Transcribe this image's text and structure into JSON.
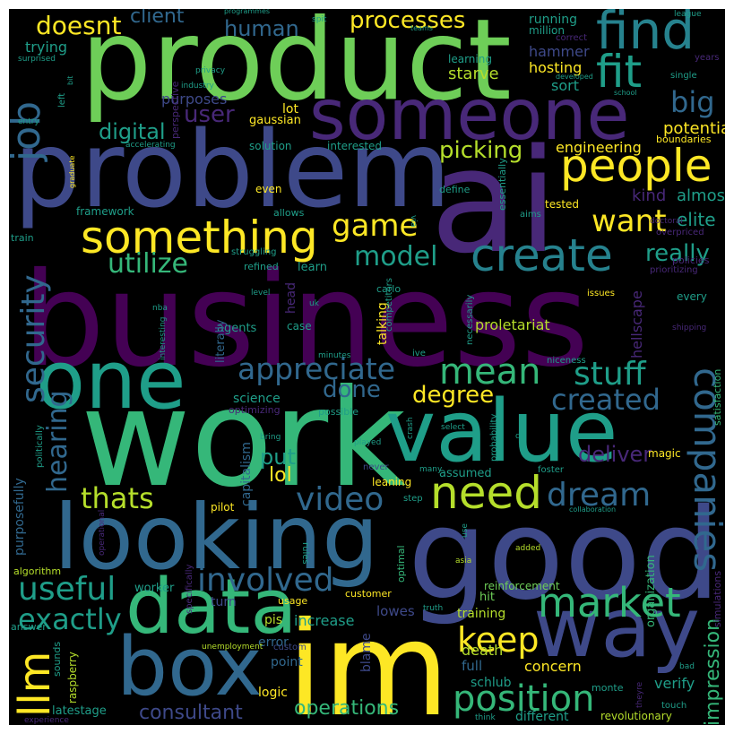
{
  "palette": {
    "yellow": "#fde725",
    "lime": "#b5de2b",
    "lightgreen": "#6ece58",
    "green": "#35b779",
    "teal": "#1f9e89",
    "cyan": "#26828e",
    "steel": "#31688e",
    "blue": "#3e4989",
    "indigo": "#482878",
    "purple": "#440154"
  },
  "words": [
    {
      "text": "business",
      "color": "purple"
    },
    {
      "text": "product",
      "color": "lightgreen"
    },
    {
      "text": "problem",
      "color": "blue"
    },
    {
      "text": "ai",
      "color": "indigo"
    },
    {
      "text": "work",
      "color": "green"
    },
    {
      "text": "value",
      "color": "teal"
    },
    {
      "text": "good",
      "color": "blue"
    },
    {
      "text": "im",
      "color": "yellow"
    },
    {
      "text": "looking",
      "color": "steel"
    },
    {
      "text": "one",
      "color": "teal"
    },
    {
      "text": "someone",
      "color": "indigo"
    },
    {
      "text": "data",
      "color": "green"
    },
    {
      "text": "box",
      "color": "steel"
    },
    {
      "text": "way",
      "color": "blue"
    },
    {
      "text": "find",
      "color": "cyan"
    },
    {
      "text": "fit",
      "color": "teal"
    },
    {
      "text": "people",
      "color": "yellow"
    },
    {
      "text": "something",
      "color": "yellow"
    },
    {
      "text": "create",
      "color": "cyan"
    },
    {
      "text": "need",
      "color": "lime"
    },
    {
      "text": "companies",
      "color": "steel"
    },
    {
      "text": "market",
      "color": "green"
    },
    {
      "text": "position",
      "color": "green"
    },
    {
      "text": "mean",
      "color": "green"
    },
    {
      "text": "llm",
      "color": "yellow"
    },
    {
      "text": "job",
      "color": "steel"
    },
    {
      "text": "security",
      "color": "steel"
    },
    {
      "text": "keep",
      "color": "yellow"
    },
    {
      "text": "video",
      "color": "steel"
    },
    {
      "text": "dream",
      "color": "steel"
    },
    {
      "text": "useful",
      "color": "teal"
    },
    {
      "text": "involved",
      "color": "steel"
    },
    {
      "text": "appreciate",
      "color": "steel"
    },
    {
      "text": "utilize",
      "color": "green"
    },
    {
      "text": "stuff",
      "color": "teal"
    },
    {
      "text": "game",
      "color": "yellow"
    },
    {
      "text": "created",
      "color": "steel"
    },
    {
      "text": "thats",
      "color": "lime"
    },
    {
      "text": "exactly",
      "color": "teal"
    },
    {
      "text": "want",
      "color": "yellow"
    },
    {
      "text": "hearing",
      "color": "steel"
    },
    {
      "text": "model",
      "color": "teal"
    },
    {
      "text": "big",
      "color": "steel"
    },
    {
      "text": "doesnt",
      "color": "yellow"
    },
    {
      "text": "processes",
      "color": "yellow"
    },
    {
      "text": "human",
      "color": "steel"
    },
    {
      "text": "client",
      "color": "steel"
    },
    {
      "text": "user",
      "color": "indigo"
    },
    {
      "text": "digital",
      "color": "teal"
    },
    {
      "text": "picking",
      "color": "lime"
    },
    {
      "text": "done",
      "color": "steel"
    },
    {
      "text": "degree",
      "color": "yellow"
    },
    {
      "text": "really",
      "color": "teal"
    },
    {
      "text": "impression",
      "color": "green"
    },
    {
      "text": "operations",
      "color": "green"
    },
    {
      "text": "consultant",
      "color": "blue"
    },
    {
      "text": "deliver",
      "color": "indigo"
    },
    {
      "text": "put",
      "color": "teal"
    },
    {
      "text": "lol",
      "color": "yellow"
    },
    {
      "text": "elite",
      "color": "teal"
    },
    {
      "text": "kind",
      "color": "indigo"
    },
    {
      "text": "almost",
      "color": "teal"
    },
    {
      "text": "potential",
      "color": "yellow"
    },
    {
      "text": "engineering",
      "color": "yellow"
    },
    {
      "text": "trying",
      "color": "teal"
    },
    {
      "text": "hosting",
      "color": "yellow"
    },
    {
      "text": "starve",
      "color": "lime"
    },
    {
      "text": "running",
      "color": "teal"
    },
    {
      "text": "million",
      "color": "teal"
    },
    {
      "text": "hammer",
      "color": "blue"
    },
    {
      "text": "sort",
      "color": "teal"
    },
    {
      "text": "learning",
      "color": "teal"
    },
    {
      "text": "purposes",
      "color": "blue"
    },
    {
      "text": "gaussian",
      "color": "yellow"
    },
    {
      "text": "lot",
      "color": "yellow"
    },
    {
      "text": "solution",
      "color": "teal"
    },
    {
      "text": "interested",
      "color": "teal"
    },
    {
      "text": "proletariat",
      "color": "lime"
    },
    {
      "text": "talking",
      "color": "yellow"
    },
    {
      "text": "hellscape",
      "color": "indigo"
    },
    {
      "text": "refined",
      "color": "teal"
    },
    {
      "text": "learn",
      "color": "teal"
    },
    {
      "text": "head",
      "color": "indigo"
    },
    {
      "text": "agents",
      "color": "teal"
    },
    {
      "text": "case",
      "color": "teal"
    },
    {
      "text": "science",
      "color": "teal"
    },
    {
      "text": "optimizing",
      "color": "indigo"
    },
    {
      "text": "possible",
      "color": "teal"
    },
    {
      "text": "capitalism",
      "color": "steel"
    },
    {
      "text": "literally",
      "color": "steel"
    },
    {
      "text": "worker",
      "color": "teal"
    },
    {
      "text": "turn",
      "color": "blue"
    },
    {
      "text": "usage",
      "color": "yellow"
    },
    {
      "text": "customer",
      "color": "yellow"
    },
    {
      "text": "increase",
      "color": "teal"
    },
    {
      "text": "pis",
      "color": "lime"
    },
    {
      "text": "lowes",
      "color": "blue"
    },
    {
      "text": "training",
      "color": "lime"
    },
    {
      "text": "hit",
      "color": "lightgreen"
    },
    {
      "text": "reinforcement",
      "color": "lightgreen"
    },
    {
      "text": "error",
      "color": "steel"
    },
    {
      "text": "point",
      "color": "steel"
    },
    {
      "text": "blame",
      "color": "blue"
    },
    {
      "text": "death",
      "color": "lime"
    },
    {
      "text": "full",
      "color": "steel"
    },
    {
      "text": "concern",
      "color": "yellow"
    },
    {
      "text": "schlub",
      "color": "teal"
    },
    {
      "text": "verify",
      "color": "teal"
    },
    {
      "text": "logic",
      "color": "yellow"
    },
    {
      "text": "different",
      "color": "teal"
    },
    {
      "text": "revolutionary",
      "color": "lime"
    },
    {
      "text": "latestage",
      "color": "teal"
    },
    {
      "text": "monte",
      "color": "teal"
    },
    {
      "text": "purposefully",
      "color": "steel"
    },
    {
      "text": "algorithm",
      "color": "lime"
    },
    {
      "text": "pilot",
      "color": "yellow"
    },
    {
      "text": "answer",
      "color": "teal"
    },
    {
      "text": "raspberry",
      "color": "lime"
    },
    {
      "text": "sounds",
      "color": "teal"
    },
    {
      "text": "unemployment",
      "color": "lime"
    },
    {
      "text": "custom",
      "color": "blue"
    },
    {
      "text": "leaning",
      "color": "yellow"
    },
    {
      "text": "assumed",
      "color": "teal"
    },
    {
      "text": "never",
      "color": "blue"
    },
    {
      "text": "step",
      "color": "teal"
    },
    {
      "text": "rules",
      "color": "teal"
    },
    {
      "text": "optimal",
      "color": "green"
    },
    {
      "text": "organization",
      "color": "green"
    },
    {
      "text": "simulations",
      "color": "indigo"
    },
    {
      "text": "satisfaction",
      "color": "green"
    },
    {
      "text": "every",
      "color": "teal"
    },
    {
      "text": "policies",
      "color": "indigo"
    },
    {
      "text": "prioritizing",
      "color": "indigo"
    },
    {
      "text": "overpriced",
      "color": "indigo"
    },
    {
      "text": "aims",
      "color": "teal"
    },
    {
      "text": "essentially",
      "color": "teal"
    },
    {
      "text": "define",
      "color": "teal"
    },
    {
      "text": "tested",
      "color": "yellow"
    },
    {
      "text": "doctoral",
      "color": "indigo"
    },
    {
      "text": "via",
      "color": "teal"
    },
    {
      "text": "carlo",
      "color": "teal"
    },
    {
      "text": "even",
      "color": "yellow"
    },
    {
      "text": "framework",
      "color": "teal"
    },
    {
      "text": "allows",
      "color": "teal"
    },
    {
      "text": "struggling",
      "color": "teal"
    },
    {
      "text": "train",
      "color": "teal"
    },
    {
      "text": "level",
      "color": "teal"
    },
    {
      "text": "uk",
      "color": "teal"
    },
    {
      "text": "nba",
      "color": "teal"
    },
    {
      "text": "competitors",
      "color": "teal"
    },
    {
      "text": "necessarily",
      "color": "teal"
    },
    {
      "text": "issues",
      "color": "yellow"
    },
    {
      "text": "shipping",
      "color": "indigo"
    },
    {
      "text": "niceness",
      "color": "teal"
    },
    {
      "text": "minutes",
      "color": "teal"
    },
    {
      "text": "ive",
      "color": "teal"
    },
    {
      "text": "interesting",
      "color": "teal"
    },
    {
      "text": "politically",
      "color": "teal"
    },
    {
      "text": "crash",
      "color": "teal"
    },
    {
      "text": "probability",
      "color": "teal"
    },
    {
      "text": "magic",
      "color": "yellow"
    },
    {
      "text": "foster",
      "color": "teal"
    },
    {
      "text": "collaboration",
      "color": "teal"
    },
    {
      "text": "added",
      "color": "lime"
    },
    {
      "text": "asia",
      "color": "lime"
    },
    {
      "text": "use",
      "color": "teal"
    },
    {
      "text": "db",
      "color": "teal"
    },
    {
      "text": "select",
      "color": "teal"
    },
    {
      "text": "played",
      "color": "teal"
    },
    {
      "text": "bring",
      "color": "teal"
    },
    {
      "text": "many",
      "color": "teal"
    },
    {
      "text": "operational",
      "color": "indigo"
    },
    {
      "text": "specifically",
      "color": "indigo"
    },
    {
      "text": "truth",
      "color": "teal"
    },
    {
      "text": "theyre",
      "color": "indigo"
    },
    {
      "text": "touch",
      "color": "teal"
    },
    {
      "text": "bad",
      "color": "teal"
    },
    {
      "text": "think",
      "color": "teal"
    },
    {
      "text": "experience",
      "color": "indigo"
    },
    {
      "text": "league",
      "color": "teal"
    },
    {
      "text": "years",
      "color": "indigo"
    },
    {
      "text": "single",
      "color": "teal"
    },
    {
      "text": "school",
      "color": "teal"
    },
    {
      "text": "developed",
      "color": "teal"
    },
    {
      "text": "correct",
      "color": "indigo"
    },
    {
      "text": "teams",
      "color": "teal"
    },
    {
      "text": "programmes",
      "color": "teal"
    },
    {
      "text": "spit",
      "color": "teal"
    },
    {
      "text": "surprised",
      "color": "teal"
    },
    {
      "text": "bit",
      "color": "teal"
    },
    {
      "text": "left",
      "color": "teal"
    },
    {
      "text": "entry",
      "color": "teal"
    },
    {
      "text": "graduate",
      "color": "yellow"
    },
    {
      "text": "perspective",
      "color": "indigo"
    },
    {
      "text": "industry",
      "color": "teal"
    },
    {
      "text": "privacy",
      "color": "teal"
    },
    {
      "text": "accelerating",
      "color": "teal"
    },
    {
      "text": "boundaries",
      "color": "yellow"
    }
  ]
}
